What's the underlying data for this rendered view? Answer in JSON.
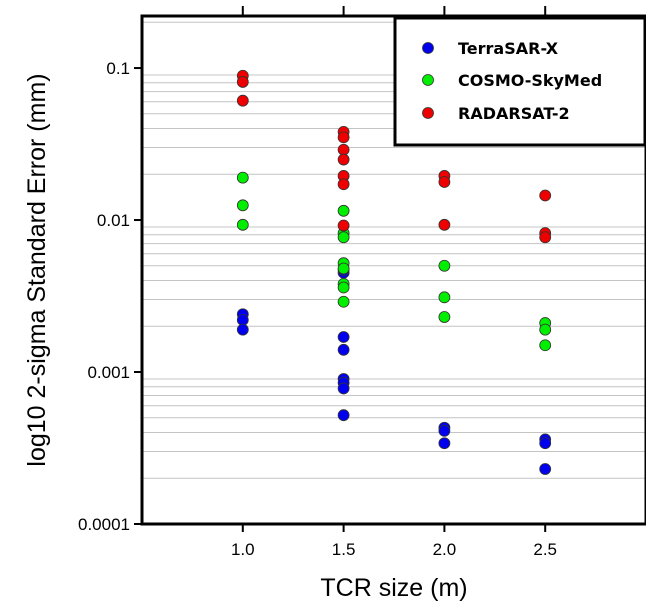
{
  "chart_data": {
    "type": "scatter",
    "xlabel": "TCR size (m)",
    "ylabel": "log10 2-sigma Standard Error (mm)",
    "xlim": [
      0.5,
      3.0
    ],
    "ylim": [
      0.0001,
      0.22
    ],
    "y_scale": "log",
    "x_ticks": [
      1.0,
      1.5,
      2.0,
      2.5
    ],
    "x_tick_labels": [
      "1.0",
      "1.5",
      "2.0",
      "2.5"
    ],
    "y_ticks": [
      0.0001,
      0.001,
      0.01,
      0.1
    ],
    "y_tick_labels": [
      "0.0001",
      "0.001",
      "0.01",
      "0.1"
    ],
    "grid": "horizontal minor gridlines",
    "legend_position": "top-right",
    "series": [
      {
        "name": "TerraSAR-X",
        "color": "#0000ee",
        "points": [
          [
            1.0,
            0.0024
          ],
          [
            1.0,
            0.0022
          ],
          [
            1.0,
            0.0019
          ],
          [
            1.5,
            0.0045
          ],
          [
            1.5,
            0.0047
          ],
          [
            1.5,
            0.0017
          ],
          [
            1.5,
            0.0014
          ],
          [
            1.5,
            0.0009
          ],
          [
            1.5,
            0.00085
          ],
          [
            1.5,
            0.00078
          ],
          [
            1.5,
            0.00052
          ],
          [
            2.0,
            0.00043
          ],
          [
            2.0,
            0.00041
          ],
          [
            2.0,
            0.00034
          ],
          [
            2.5,
            0.00036
          ],
          [
            2.5,
            0.00034
          ],
          [
            2.5,
            0.00023
          ]
        ]
      },
      {
        "name": "COSMO-SkyMed",
        "color": "#00ee00",
        "points": [
          [
            1.0,
            0.019
          ],
          [
            1.0,
            0.0125
          ],
          [
            1.0,
            0.0093
          ],
          [
            1.5,
            0.0115
          ],
          [
            1.5,
            0.0082
          ],
          [
            1.5,
            0.0077
          ],
          [
            1.5,
            0.0052
          ],
          [
            1.5,
            0.0048
          ],
          [
            1.5,
            0.0038
          ],
          [
            1.5,
            0.0036
          ],
          [
            1.5,
            0.0029
          ],
          [
            2.0,
            0.005
          ],
          [
            2.0,
            0.0031
          ],
          [
            2.0,
            0.0023
          ],
          [
            2.5,
            0.0021
          ],
          [
            2.5,
            0.0019
          ],
          [
            2.5,
            0.0015
          ]
        ]
      },
      {
        "name": "RADARSAT-2",
        "color": "#ee0000",
        "points": [
          [
            1.0,
            0.089
          ],
          [
            1.0,
            0.081
          ],
          [
            1.0,
            0.061
          ],
          [
            1.5,
            0.038
          ],
          [
            1.5,
            0.035
          ],
          [
            1.5,
            0.029
          ],
          [
            1.5,
            0.025
          ],
          [
            1.5,
            0.0195
          ],
          [
            1.5,
            0.0172
          ],
          [
            1.5,
            0.0092
          ],
          [
            2.0,
            0.0195
          ],
          [
            2.0,
            0.0178
          ],
          [
            2.0,
            0.0093
          ],
          [
            2.5,
            0.0145
          ],
          [
            2.5,
            0.0082
          ],
          [
            2.5,
            0.0077
          ]
        ]
      }
    ]
  }
}
